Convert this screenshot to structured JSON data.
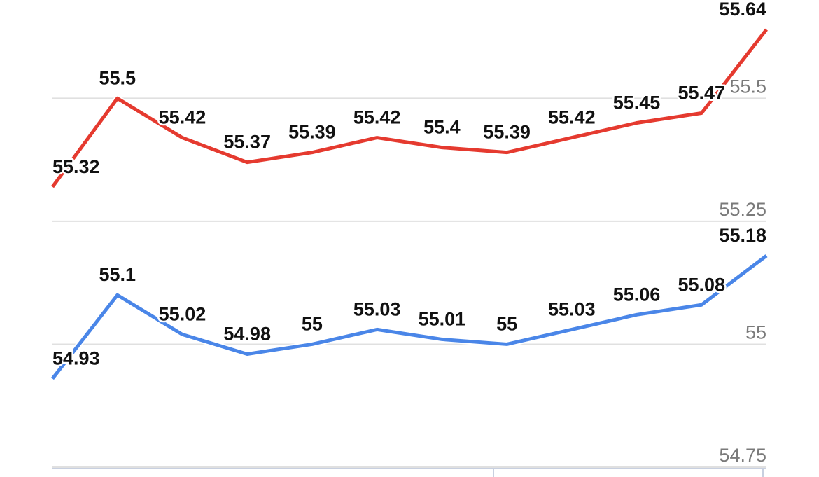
{
  "chart_data": {
    "type": "line",
    "categories": [
      null,
      null,
      null,
      null,
      null,
      null,
      null,
      null,
      null,
      null,
      null,
      null
    ],
    "series": [
      {
        "name": null,
        "color": "#e53a2f",
        "values": [
          55.32,
          55.5,
          55.42,
          55.37,
          55.39,
          55.42,
          55.4,
          55.39,
          55.42,
          55.45,
          55.47,
          55.64
        ]
      },
      {
        "name": null,
        "color": "#4a86e8",
        "values": [
          54.93,
          55.1,
          55.02,
          54.98,
          55,
          55.03,
          55.01,
          55,
          55.03,
          55.06,
          55.08,
          55.18
        ]
      }
    ],
    "ylim": [
      54.73,
      55.7
    ],
    "yticks": [
      54.75,
      55,
      55.25,
      55.5
    ],
    "grid": true
  }
}
